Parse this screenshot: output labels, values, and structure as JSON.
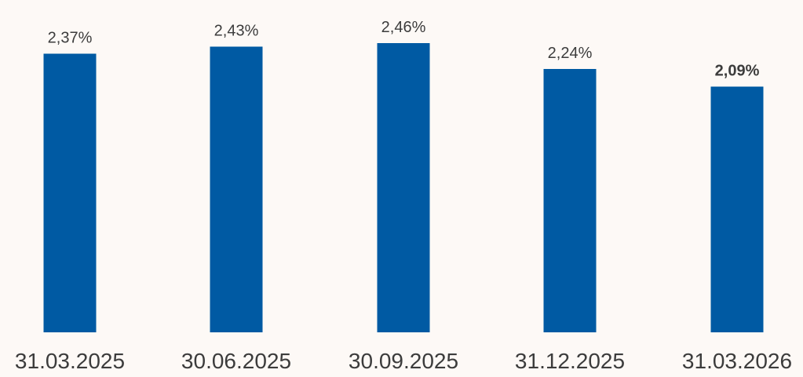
{
  "chart_data": {
    "type": "bar",
    "categories": [
      "31.03.2025",
      "30.06.2025",
      "30.09.2025",
      "31.12.2025",
      "31.03.2026"
    ],
    "values": [
      2.37,
      2.43,
      2.46,
      2.24,
      2.09
    ],
    "data_labels": [
      "2,37%",
      "2,43%",
      "2,46%",
      "2,24%",
      "2,09%"
    ],
    "highlight_index": 4,
    "ylim": [
      0,
      2.5
    ],
    "grid": false,
    "colors": {
      "bar": "#005aa3",
      "label": "#3c3c3c",
      "background": "#fdf9f6"
    }
  }
}
